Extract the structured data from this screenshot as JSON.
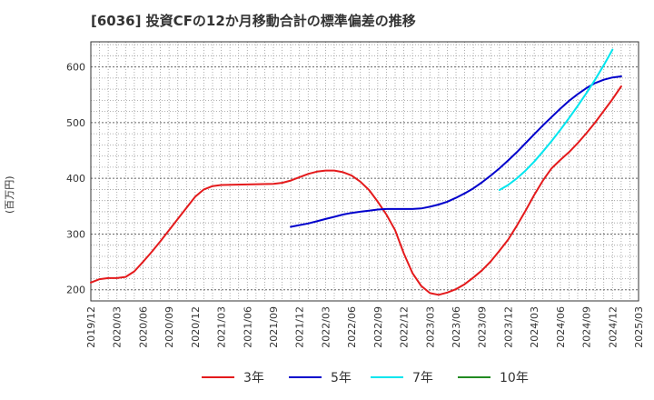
{
  "title": "[6036]  投資CFの12か月移動合計の標準偏差の推移",
  "chart_data": {
    "type": "line",
    "title": "[6036]  投資CFの12か月移動合計の標準偏差の推移",
    "ylabel": "(百万円)",
    "xlabel": "",
    "ylim": [
      180,
      645
    ],
    "yticks": [
      200,
      300,
      400,
      500,
      600
    ],
    "xticks": [
      "2019/12",
      "2020/03",
      "2020/06",
      "2020/09",
      "2020/12",
      "2021/03",
      "2021/06",
      "2021/09",
      "2021/12",
      "2022/03",
      "2022/06",
      "2022/09",
      "2022/12",
      "2023/03",
      "2023/06",
      "2023/09",
      "2023/12",
      "2024/03",
      "2024/06",
      "2024/09",
      "2024/12",
      "2025/03"
    ],
    "grid": true,
    "legend_position": "bottom",
    "series": [
      {
        "name": "3年",
        "color": "#e41a1c",
        "points": [
          [
            "2019/12",
            213
          ],
          [
            "2020/01",
            219
          ],
          [
            "2020/02",
            221
          ],
          [
            "2020/03",
            221
          ],
          [
            "2020/04",
            223
          ],
          [
            "2020/05",
            233
          ],
          [
            "2020/06",
            250
          ],
          [
            "2020/07",
            268
          ],
          [
            "2020/08",
            287
          ],
          [
            "2020/09",
            307
          ],
          [
            "2020/10",
            327
          ],
          [
            "2020/11",
            347
          ],
          [
            "2020/12",
            367
          ],
          [
            "2021/01",
            380
          ],
          [
            "2021/02",
            386
          ],
          [
            "2021/03",
            388
          ],
          [
            "2021/06",
            389
          ],
          [
            "2021/09",
            390
          ],
          [
            "2021/10",
            392
          ],
          [
            "2021/11",
            396
          ],
          [
            "2021/12",
            402
          ],
          [
            "2022/01",
            408
          ],
          [
            "2022/02",
            412
          ],
          [
            "2022/03",
            414
          ],
          [
            "2022/04",
            414
          ],
          [
            "2022/05",
            411
          ],
          [
            "2022/06",
            405
          ],
          [
            "2022/07",
            394
          ],
          [
            "2022/08",
            379
          ],
          [
            "2022/09",
            358
          ],
          [
            "2022/10",
            335
          ],
          [
            "2022/11",
            307
          ],
          [
            "2022/12",
            265
          ],
          [
            "2023/01",
            230
          ],
          [
            "2023/02",
            207
          ],
          [
            "2023/03",
            194
          ],
          [
            "2023/04",
            191
          ],
          [
            "2023/05",
            195
          ],
          [
            "2023/06",
            201
          ],
          [
            "2023/07",
            210
          ],
          [
            "2023/08",
            222
          ],
          [
            "2023/09",
            235
          ],
          [
            "2023/10",
            251
          ],
          [
            "2023/11",
            270
          ],
          [
            "2023/12",
            290
          ],
          [
            "2024/01",
            315
          ],
          [
            "2024/02",
            342
          ],
          [
            "2024/03",
            370
          ],
          [
            "2024/04",
            396
          ],
          [
            "2024/05",
            418
          ],
          [
            "2024/06",
            433
          ],
          [
            "2024/07",
            447
          ],
          [
            "2024/08",
            463
          ],
          [
            "2024/09",
            481
          ],
          [
            "2024/10",
            500
          ],
          [
            "2024/11",
            521
          ],
          [
            "2024/12",
            542
          ],
          [
            "2025/01",
            565
          ]
        ]
      },
      {
        "name": "5年",
        "color": "#0000cc",
        "points": [
          [
            "2021/11",
            313
          ],
          [
            "2021/12",
            316
          ],
          [
            "2022/01",
            319
          ],
          [
            "2022/02",
            323
          ],
          [
            "2022/03",
            327
          ],
          [
            "2022/04",
            331
          ],
          [
            "2022/05",
            335
          ],
          [
            "2022/06",
            338
          ],
          [
            "2022/07",
            340
          ],
          [
            "2022/08",
            342
          ],
          [
            "2022/09",
            344
          ],
          [
            "2022/10",
            345
          ],
          [
            "2022/11",
            345
          ],
          [
            "2022/12",
            345
          ],
          [
            "2023/01",
            345
          ],
          [
            "2023/02",
            346
          ],
          [
            "2023/03",
            349
          ],
          [
            "2023/04",
            353
          ],
          [
            "2023/05",
            358
          ],
          [
            "2023/06",
            365
          ],
          [
            "2023/07",
            373
          ],
          [
            "2023/08",
            382
          ],
          [
            "2023/09",
            393
          ],
          [
            "2023/10",
            405
          ],
          [
            "2023/11",
            418
          ],
          [
            "2023/12",
            432
          ],
          [
            "2024/01",
            447
          ],
          [
            "2024/02",
            463
          ],
          [
            "2024/03",
            479
          ],
          [
            "2024/04",
            495
          ],
          [
            "2024/05",
            510
          ],
          [
            "2024/06",
            525
          ],
          [
            "2024/07",
            539
          ],
          [
            "2024/08",
            551
          ],
          [
            "2024/09",
            562
          ],
          [
            "2024/10",
            571
          ],
          [
            "2024/11",
            577
          ],
          [
            "2024/12",
            581
          ],
          [
            "2025/01",
            583
          ]
        ]
      },
      {
        "name": "7年",
        "color": "#00e5ee",
        "points": [
          [
            "2023/11",
            379
          ],
          [
            "2023/12",
            388
          ],
          [
            "2024/01",
            400
          ],
          [
            "2024/02",
            414
          ],
          [
            "2024/03",
            430
          ],
          [
            "2024/04",
            448
          ],
          [
            "2024/05",
            467
          ],
          [
            "2024/06",
            487
          ],
          [
            "2024/07",
            508
          ],
          [
            "2024/08",
            530
          ],
          [
            "2024/09",
            553
          ],
          [
            "2024/10",
            577
          ],
          [
            "2024/11",
            603
          ],
          [
            "2024/12",
            631
          ]
        ]
      },
      {
        "name": "10年",
        "color": "#228b22",
        "points": []
      }
    ]
  }
}
